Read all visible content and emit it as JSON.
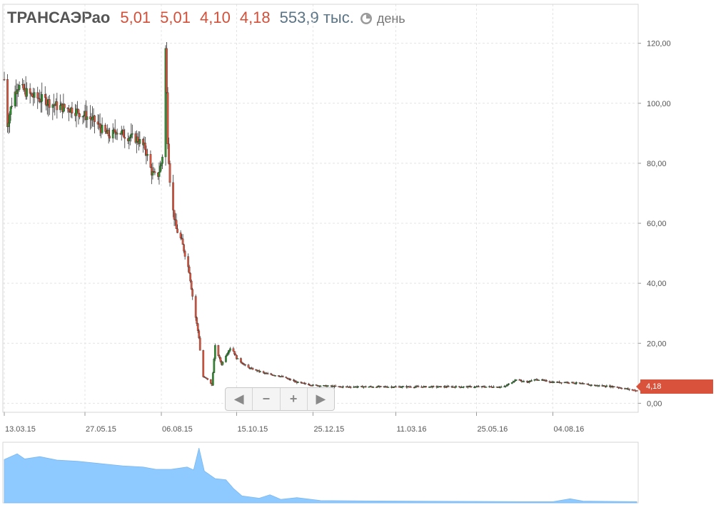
{
  "header": {
    "ticker": "ТРАНСАЭРао",
    "open": "5,01",
    "high": "5,01",
    "low": "4,10",
    "close": "4,18",
    "volume": "553,9 тыс.",
    "period": "день"
  },
  "icons": {
    "period": "clock-icon",
    "nav_left": "arrow-left-icon",
    "nav_right": "arrow-right-icon"
  },
  "nav": {
    "left": "◀",
    "zoom_out": "−",
    "zoom_in": "+",
    "right": "▶"
  },
  "price_tag": "4,18",
  "colors": {
    "up": "#2f8f2f",
    "down": "#d9533c",
    "volume": "#8ec9ff",
    "tag": "#d9533c"
  },
  "chart_data": {
    "type": "candlestick",
    "title": "ТРАНСАЭРао",
    "y_ticks": [
      "0,00",
      "20,00",
      "40,00",
      "60,00",
      "80,00",
      "100,00",
      "120,00"
    ],
    "y_tick_values": [
      0,
      20,
      40,
      60,
      80,
      100,
      120
    ],
    "ylim": [
      -3,
      133
    ],
    "x_ticks": [
      "13.03.15",
      "27.05.15",
      "06.08.15",
      "15.10.15",
      "25.12.15",
      "11.03.16",
      "25.05.16",
      "04.08.16"
    ],
    "x_range_days": [
      "2015-03-13",
      "2016-10-21"
    ],
    "grid": true,
    "last_price": 4.18,
    "price_path": [
      [
        "2015-03-13",
        108
      ],
      [
        "2015-03-16",
        93
      ],
      [
        "2015-03-20",
        100
      ],
      [
        "2015-03-25",
        106
      ],
      [
        "2015-04-01",
        104
      ],
      [
        "2015-04-10",
        102
      ],
      [
        "2015-04-20",
        101
      ],
      [
        "2015-05-01",
        99
      ],
      [
        "2015-05-15",
        98
      ],
      [
        "2015-05-27",
        96
      ],
      [
        "2015-06-05",
        94
      ],
      [
        "2015-06-10",
        92
      ],
      [
        "2015-06-15",
        90
      ],
      [
        "2015-06-20",
        89
      ],
      [
        "2015-06-25",
        91
      ],
      [
        "2015-07-05",
        89
      ],
      [
        "2015-07-15",
        88
      ],
      [
        "2015-07-22",
        85
      ],
      [
        "2015-07-28",
        77
      ],
      [
        "2015-08-02",
        75
      ],
      [
        "2015-08-06",
        80
      ],
      [
        "2015-08-09",
        88
      ],
      [
        "2015-08-10",
        118
      ],
      [
        "2015-08-12",
        88
      ],
      [
        "2015-08-15",
        68
      ],
      [
        "2015-08-20",
        58
      ],
      [
        "2015-08-25",
        54
      ],
      [
        "2015-09-01",
        44
      ],
      [
        "2015-09-05",
        33
      ],
      [
        "2015-09-10",
        22
      ],
      [
        "2015-09-13",
        9
      ],
      [
        "2015-09-18",
        8
      ],
      [
        "2015-09-22",
        6
      ],
      [
        "2015-09-25",
        19
      ],
      [
        "2015-10-01",
        13
      ],
      [
        "2015-10-05",
        16
      ],
      [
        "2015-10-10",
        19
      ],
      [
        "2015-10-15",
        15
      ],
      [
        "2015-10-25",
        12
      ],
      [
        "2015-11-10",
        10
      ],
      [
        "2015-11-25",
        9
      ],
      [
        "2015-12-10",
        7
      ],
      [
        "2015-12-25",
        6
      ],
      [
        "2016-01-20",
        5.5
      ],
      [
        "2016-03-11",
        5.5
      ],
      [
        "2016-04-20",
        5.5
      ],
      [
        "2016-05-25",
        5.5
      ],
      [
        "2016-06-20",
        5.5
      ],
      [
        "2016-07-01",
        8
      ],
      [
        "2016-07-10",
        7
      ],
      [
        "2016-07-20",
        8
      ],
      [
        "2016-08-04",
        7
      ],
      [
        "2016-08-20",
        7
      ],
      [
        "2016-09-10",
        6
      ],
      [
        "2016-10-01",
        5.5
      ],
      [
        "2016-10-21",
        4.18
      ]
    ],
    "volume_path": [
      [
        "2015-03-13",
        0.75
      ],
      [
        "2015-03-25",
        0.85
      ],
      [
        "2015-04-01",
        0.76
      ],
      [
        "2015-04-15",
        0.8
      ],
      [
        "2015-05-01",
        0.74
      ],
      [
        "2015-05-20",
        0.72
      ],
      [
        "2015-06-10",
        0.68
      ],
      [
        "2015-07-01",
        0.64
      ],
      [
        "2015-07-20",
        0.62
      ],
      [
        "2015-08-01",
        0.58
      ],
      [
        "2015-08-15",
        0.58
      ],
      [
        "2015-08-30",
        0.62
      ],
      [
        "2015-09-05",
        0.57
      ],
      [
        "2015-09-10",
        0.95
      ],
      [
        "2015-09-15",
        0.55
      ],
      [
        "2015-09-25",
        0.42
      ],
      [
        "2015-10-05",
        0.4
      ],
      [
        "2015-10-12",
        0.25
      ],
      [
        "2015-10-20",
        0.12
      ],
      [
        "2015-11-05",
        0.08
      ],
      [
        "2015-11-15",
        0.14
      ],
      [
        "2015-11-25",
        0.06
      ],
      [
        "2015-12-10",
        0.09
      ],
      [
        "2016-01-01",
        0.04
      ],
      [
        "2016-03-11",
        0.03
      ],
      [
        "2016-05-25",
        0.025
      ],
      [
        "2016-07-05",
        0.02
      ],
      [
        "2016-08-04",
        0.02
      ],
      [
        "2016-08-20",
        0.07
      ],
      [
        "2016-09-01",
        0.03
      ],
      [
        "2016-10-21",
        0.02
      ]
    ]
  }
}
